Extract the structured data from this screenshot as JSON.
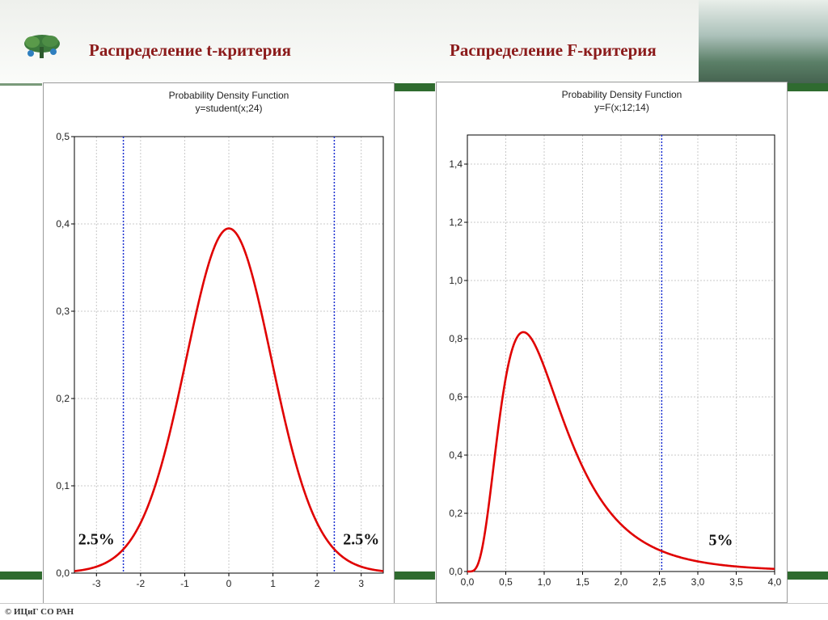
{
  "slide": {
    "title_left": "Распределение  t-критерия",
    "title_right": "Распределение  F-критерия",
    "footer": "© ИЦиГ СО РАН",
    "accent_color": "#8b1a1a",
    "green_color": "#2f6b2f"
  },
  "chart_data": [
    {
      "type": "line",
      "title": "Probability Density Function",
      "subtitle": "y=student(x;24)",
      "distribution": "student-t",
      "df": 24,
      "xlim": [
        -3.5,
        3.5
      ],
      "ylim": [
        0,
        0.5
      ],
      "x_ticks": [
        -3,
        -2,
        -1,
        0,
        1,
        2,
        3
      ],
      "x_tick_labels": [
        "-3",
        "-2",
        "-1",
        "0",
        "1",
        "2",
        "3"
      ],
      "y_ticks": [
        0,
        0.1,
        0.2,
        0.3,
        0.4,
        0.5
      ],
      "y_tick_labels": [
        "0,0",
        "0,1",
        "0,2",
        "0,3",
        "0,4",
        "0,5"
      ],
      "grid": true,
      "line_color": "#e00000",
      "critical_color": "#1a2fd0",
      "critical_lines": [
        -2.39,
        2.39
      ],
      "annotations": [
        {
          "text": "2.5%",
          "x": -3.0,
          "y": 0.033
        },
        {
          "text": "2.5%",
          "x": 3.0,
          "y": 0.033
        }
      ]
    },
    {
      "type": "line",
      "title": "Probability Density Function",
      "subtitle": "y=F(x;12;14)",
      "distribution": "F",
      "df1": 12,
      "df2": 14,
      "xlim": [
        0,
        4.0
      ],
      "ylim": [
        0,
        1.5
      ],
      "x_ticks": [
        0,
        0.5,
        1.0,
        1.5,
        2.0,
        2.5,
        3.0,
        3.5,
        4.0
      ],
      "x_tick_labels": [
        "0,0",
        "0,5",
        "1,0",
        "1,5",
        "2,0",
        "2,5",
        "3,0",
        "3,5",
        "4,0"
      ],
      "y_ticks": [
        0,
        0.2,
        0.4,
        0.6,
        0.8,
        1.0,
        1.2,
        1.4
      ],
      "y_tick_labels": [
        "0,0",
        "0,2",
        "0,4",
        "0,6",
        "0,8",
        "1,0",
        "1,2",
        "1,4"
      ],
      "grid": true,
      "line_color": "#e00000",
      "critical_color": "#1a2fd0",
      "critical_lines": [
        2.53
      ],
      "annotations": [
        {
          "text": "5%",
          "x": 3.3,
          "y": 0.09
        }
      ]
    }
  ]
}
